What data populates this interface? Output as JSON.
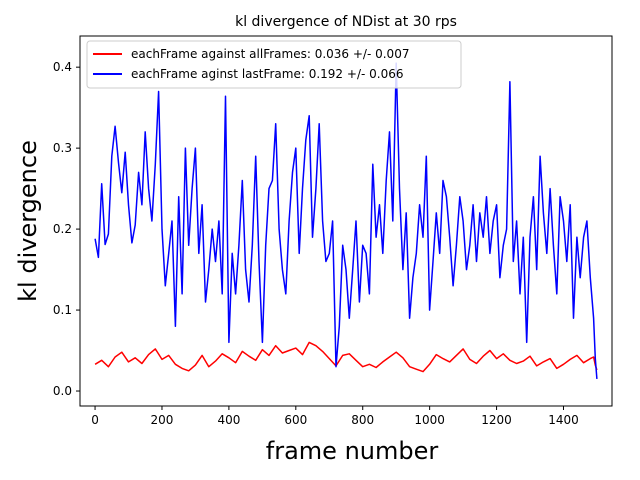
{
  "chart_data": {
    "type": "line",
    "title": "kl divergence of NDist at 30 rps",
    "xlabel": "frame number",
    "ylabel": "kl divergence",
    "xlim": [
      -45,
      1545
    ],
    "ylim": [
      -0.0185,
      0.4385
    ],
    "xticks": [
      0,
      200,
      400,
      600,
      800,
      1000,
      1200,
      1400
    ],
    "yticks": [
      0.0,
      0.1,
      0.2,
      0.3,
      0.4
    ],
    "ytick_labels": [
      "0.0",
      "0.1",
      "0.2",
      "0.3",
      "0.4"
    ],
    "grid": false,
    "legend_position": "upper-left",
    "series": [
      {
        "name": "eachFrame against allFrames: 0.036 +/- 0.007",
        "color": "#ff0000",
        "x": [
          0,
          20,
          40,
          60,
          80,
          100,
          120,
          140,
          160,
          180,
          200,
          220,
          240,
          260,
          280,
          300,
          320,
          340,
          360,
          380,
          400,
          420,
          440,
          460,
          480,
          500,
          520,
          540,
          560,
          580,
          600,
          620,
          640,
          660,
          680,
          700,
          720,
          740,
          760,
          780,
          800,
          820,
          840,
          860,
          880,
          900,
          920,
          940,
          960,
          980,
          1000,
          1020,
          1040,
          1060,
          1080,
          1100,
          1120,
          1140,
          1160,
          1180,
          1200,
          1220,
          1240,
          1260,
          1280,
          1300,
          1320,
          1340,
          1360,
          1380,
          1400,
          1420,
          1440,
          1460,
          1480,
          1490,
          1495,
          1500
        ],
        "values": [
          0.033,
          0.038,
          0.03,
          0.042,
          0.048,
          0.036,
          0.041,
          0.034,
          0.045,
          0.052,
          0.039,
          0.044,
          0.033,
          0.028,
          0.025,
          0.032,
          0.044,
          0.03,
          0.037,
          0.046,
          0.041,
          0.035,
          0.049,
          0.043,
          0.038,
          0.051,
          0.044,
          0.056,
          0.047,
          0.05,
          0.053,
          0.045,
          0.06,
          0.056,
          0.049,
          0.04,
          0.031,
          0.044,
          0.046,
          0.038,
          0.03,
          0.033,
          0.029,
          0.036,
          0.042,
          0.048,
          0.041,
          0.03,
          0.027,
          0.024,
          0.033,
          0.045,
          0.04,
          0.036,
          0.044,
          0.052,
          0.039,
          0.034,
          0.043,
          0.05,
          0.04,
          0.046,
          0.038,
          0.034,
          0.037,
          0.043,
          0.031,
          0.036,
          0.04,
          0.028,
          0.033,
          0.039,
          0.044,
          0.035,
          0.04,
          0.042,
          0.032,
          0.026
        ]
      },
      {
        "name": "eachFrame aginst lastFrame: 0.192 +/- 0.066",
        "color": "#0000ff",
        "x": [
          0,
          10,
          20,
          30,
          40,
          50,
          60,
          70,
          80,
          90,
          100,
          110,
          120,
          130,
          140,
          150,
          160,
          170,
          180,
          190,
          200,
          210,
          220,
          230,
          240,
          250,
          260,
          270,
          280,
          290,
          300,
          310,
          320,
          330,
          340,
          350,
          360,
          370,
          380,
          390,
          400,
          410,
          420,
          430,
          440,
          450,
          460,
          470,
          480,
          490,
          500,
          510,
          520,
          530,
          540,
          550,
          560,
          570,
          580,
          590,
          600,
          610,
          620,
          630,
          640,
          650,
          660,
          670,
          680,
          690,
          700,
          710,
          720,
          730,
          740,
          750,
          760,
          770,
          780,
          790,
          800,
          810,
          820,
          830,
          840,
          850,
          860,
          870,
          880,
          890,
          900,
          910,
          920,
          930,
          940,
          950,
          960,
          970,
          980,
          990,
          1000,
          1010,
          1020,
          1030,
          1040,
          1050,
          1060,
          1070,
          1080,
          1090,
          1100,
          1110,
          1120,
          1130,
          1140,
          1150,
          1160,
          1170,
          1180,
          1190,
          1200,
          1210,
          1220,
          1230,
          1240,
          1250,
          1260,
          1270,
          1280,
          1290,
          1300,
          1310,
          1320,
          1330,
          1340,
          1350,
          1360,
          1370,
          1380,
          1390,
          1400,
          1410,
          1420,
          1430,
          1440,
          1450,
          1460,
          1470,
          1480,
          1490,
          1495,
          1500
        ],
        "values": [
          0.188,
          0.165,
          0.256,
          0.181,
          0.194,
          0.29,
          0.327,
          0.282,
          0.245,
          0.295,
          0.23,
          0.183,
          0.205,
          0.27,
          0.23,
          0.32,
          0.25,
          0.21,
          0.28,
          0.37,
          0.2,
          0.13,
          0.17,
          0.21,
          0.08,
          0.24,
          0.12,
          0.3,
          0.18,
          0.25,
          0.3,
          0.17,
          0.23,
          0.11,
          0.15,
          0.2,
          0.16,
          0.21,
          0.12,
          0.364,
          0.06,
          0.17,
          0.12,
          0.18,
          0.26,
          0.15,
          0.11,
          0.18,
          0.29,
          0.16,
          0.06,
          0.18,
          0.25,
          0.26,
          0.33,
          0.2,
          0.15,
          0.12,
          0.21,
          0.27,
          0.3,
          0.17,
          0.25,
          0.31,
          0.34,
          0.19,
          0.25,
          0.33,
          0.21,
          0.16,
          0.17,
          0.21,
          0.03,
          0.08,
          0.18,
          0.15,
          0.09,
          0.15,
          0.21,
          0.11,
          0.18,
          0.17,
          0.12,
          0.28,
          0.19,
          0.23,
          0.17,
          0.26,
          0.32,
          0.21,
          0.405,
          0.25,
          0.15,
          0.22,
          0.09,
          0.14,
          0.17,
          0.23,
          0.19,
          0.29,
          0.1,
          0.16,
          0.22,
          0.17,
          0.26,
          0.24,
          0.19,
          0.13,
          0.18,
          0.24,
          0.21,
          0.15,
          0.18,
          0.23,
          0.16,
          0.22,
          0.19,
          0.24,
          0.17,
          0.21,
          0.23,
          0.14,
          0.18,
          0.2,
          0.382,
          0.16,
          0.21,
          0.12,
          0.19,
          0.06,
          0.19,
          0.24,
          0.15,
          0.29,
          0.22,
          0.17,
          0.25,
          0.18,
          0.12,
          0.24,
          0.21,
          0.16,
          0.23,
          0.09,
          0.19,
          0.14,
          0.19,
          0.21,
          0.14,
          0.09,
          0.04,
          0.015
        ]
      }
    ]
  }
}
